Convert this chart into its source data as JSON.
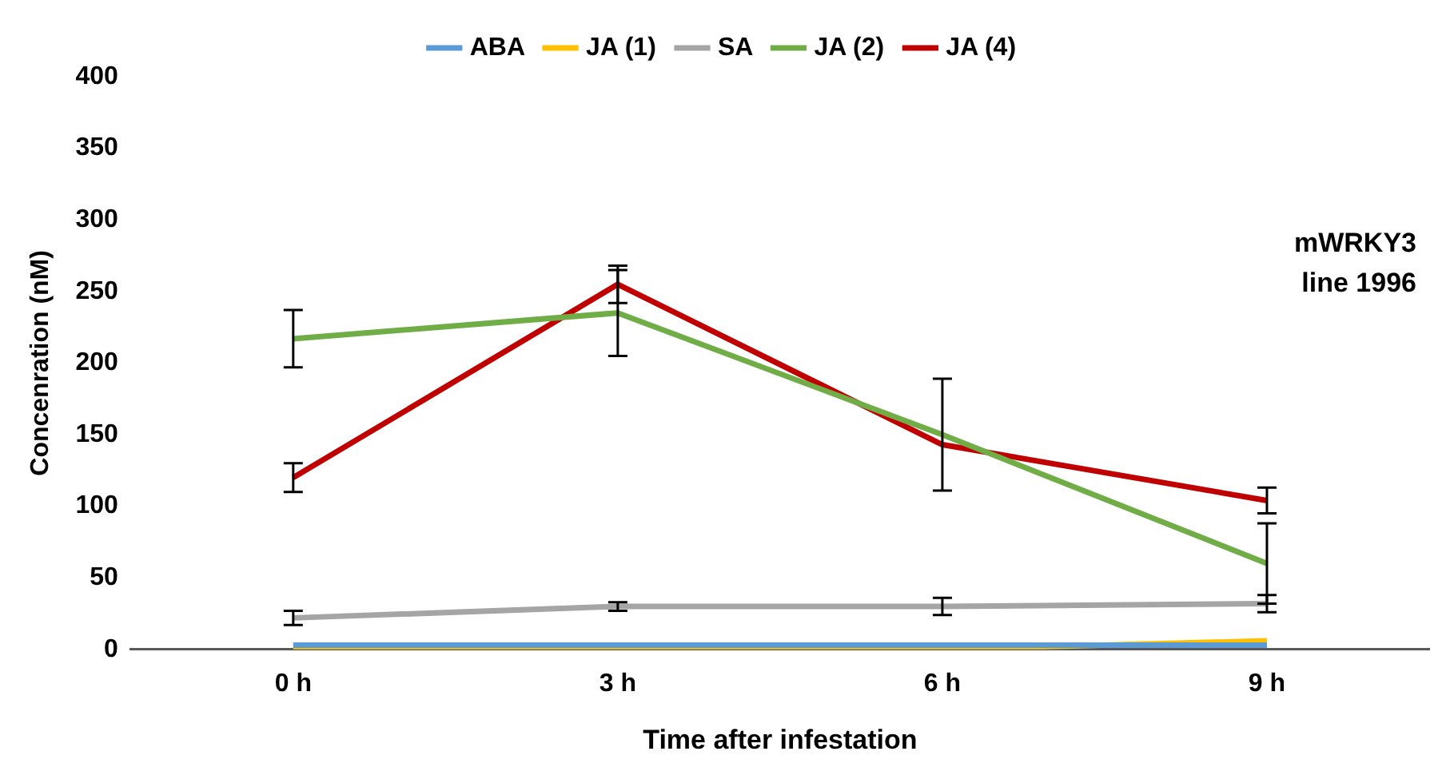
{
  "chart_data": {
    "type": "line",
    "xlabel": "Time after infestation",
    "ylabel": "Concenration (nM)",
    "categories": [
      "0 h",
      "3 h",
      "6 h",
      "9 h"
    ],
    "series": [
      {
        "name": "ABA",
        "color": "#5b9bd5",
        "values": [
          3,
          3,
          3,
          3
        ]
      },
      {
        "name": "JA (1)",
        "color": "#ffc000",
        "values": [
          0,
          0,
          0,
          6
        ]
      },
      {
        "name": "SA",
        "color": "#a5a5a5",
        "values": [
          22,
          30,
          30,
          32
        ],
        "errors": [
          5,
          3,
          6,
          6
        ]
      },
      {
        "name": "JA (2)",
        "color": "#70ad47",
        "values": [
          217,
          235,
          150,
          60
        ],
        "errors": [
          20,
          30,
          39,
          28
        ]
      },
      {
        "name": "JA (4)",
        "color": "#c00000",
        "values": [
          120,
          255,
          143,
          104
        ],
        "errors": [
          10,
          13,
          null,
          9
        ]
      }
    ],
    "ylim": [
      0,
      400
    ],
    "yticks": [
      0,
      50,
      100,
      150,
      200,
      250,
      300,
      350,
      400
    ],
    "grid": false,
    "legend": "top",
    "line_style": "solid",
    "annotations": [
      "mWRKY3",
      "line 1996"
    ]
  }
}
